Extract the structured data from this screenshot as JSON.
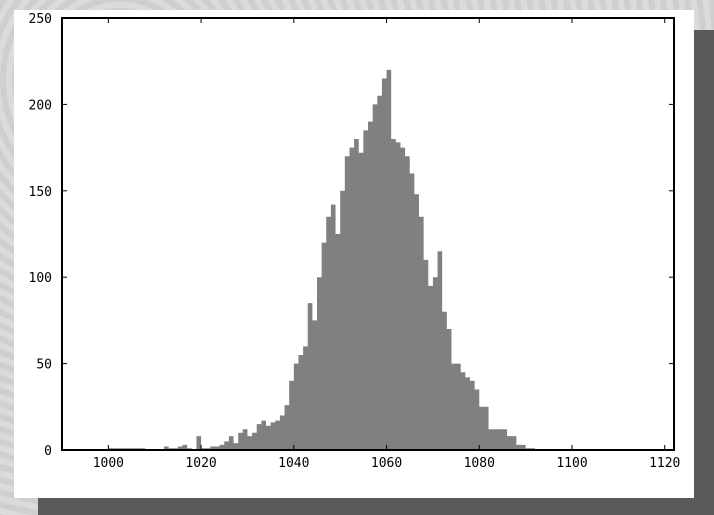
{
  "chart_data": {
    "type": "area",
    "title": "",
    "xlabel": "",
    "ylabel": "",
    "xlim": [
      990,
      1122
    ],
    "ylim": [
      0,
      250
    ],
    "xticks": [
      "1000",
      "1020",
      "1040",
      "1060",
      "1080",
      "1100",
      "1120"
    ],
    "yticks": [
      "0",
      "50",
      "100",
      "150",
      "200",
      "250"
    ],
    "grid": false,
    "legend": "none",
    "fill_color": "#808080",
    "series": [
      {
        "x": [
          990,
          1000,
          1002,
          1008,
          1010,
          1012,
          1013,
          1015,
          1016,
          1017,
          1018,
          1019,
          1020,
          1022,
          1024,
          1025,
          1026,
          1027,
          1028,
          1029,
          1030,
          1031,
          1032,
          1033,
          1034,
          1035,
          1036,
          1037,
          1038,
          1039,
          1040,
          1041,
          1042,
          1043,
          1044,
          1045,
          1046,
          1047,
          1048,
          1049,
          1050,
          1051,
          1052,
          1053,
          1054,
          1055,
          1056,
          1057,
          1058,
          1059,
          1060,
          1061,
          1062,
          1063,
          1064,
          1065,
          1066,
          1067,
          1068,
          1069,
          1070,
          1071,
          1072,
          1073,
          1074,
          1075,
          1076,
          1077,
          1078,
          1079,
          1080,
          1082,
          1084,
          1086,
          1088,
          1090,
          1092,
          1122
        ],
        "y": [
          0,
          1,
          1,
          0,
          0,
          2,
          1,
          2,
          3,
          1,
          0,
          8,
          1,
          2,
          3,
          5,
          8,
          4,
          10,
          12,
          8,
          10,
          15,
          17,
          14,
          16,
          17,
          20,
          26,
          40,
          50,
          55,
          60,
          85,
          75,
          100,
          120,
          135,
          142,
          125,
          150,
          170,
          175,
          180,
          172,
          185,
          190,
          200,
          205,
          215,
          220,
          180,
          178,
          175,
          170,
          160,
          148,
          135,
          110,
          95,
          100,
          115,
          80,
          70,
          50,
          50,
          45,
          42,
          40,
          35,
          25,
          12,
          12,
          8,
          3,
          1,
          0,
          0
        ]
      }
    ]
  }
}
